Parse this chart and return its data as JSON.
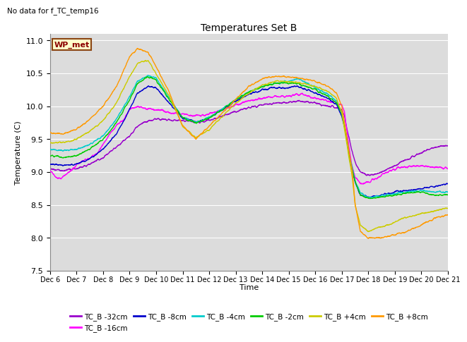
{
  "title": "Temperatures Set B",
  "subtitle": "No data for f_TC_temp16",
  "ylabel": "Temperature (C)",
  "xlabel": "Time",
  "wp_met_label": "WP_met",
  "ylim": [
    7.5,
    11.1
  ],
  "yticks": [
    7.5,
    8.0,
    8.5,
    9.0,
    9.5,
    10.0,
    10.5,
    11.0
  ],
  "xtick_labels": [
    "Dec 6",
    "Dec 7",
    "Dec 8",
    "Dec 9",
    "Dec 10",
    "Dec 11",
    "Dec 12",
    "Dec 13",
    "Dec 14",
    "Dec 15",
    "Dec 16",
    "Dec 17",
    "Dec 18",
    "Dec 19",
    "Dec 20",
    "Dec 21"
  ],
  "bg_color": "#dcdcdc",
  "grid_color": "white",
  "series": [
    {
      "label": "TC_B -32cm",
      "color": "#9900cc"
    },
    {
      "label": "TC_B -16cm",
      "color": "#ff00ff"
    },
    {
      "label": "TC_B -8cm",
      "color": "#0000cc"
    },
    {
      "label": "TC_B -4cm",
      "color": "#00cccc"
    },
    {
      "label": "TC_B -2cm",
      "color": "#00cc00"
    },
    {
      "label": "TC_B +4cm",
      "color": "#cccc00"
    },
    {
      "label": "TC_B +8cm",
      "color": "#ff9900"
    }
  ]
}
